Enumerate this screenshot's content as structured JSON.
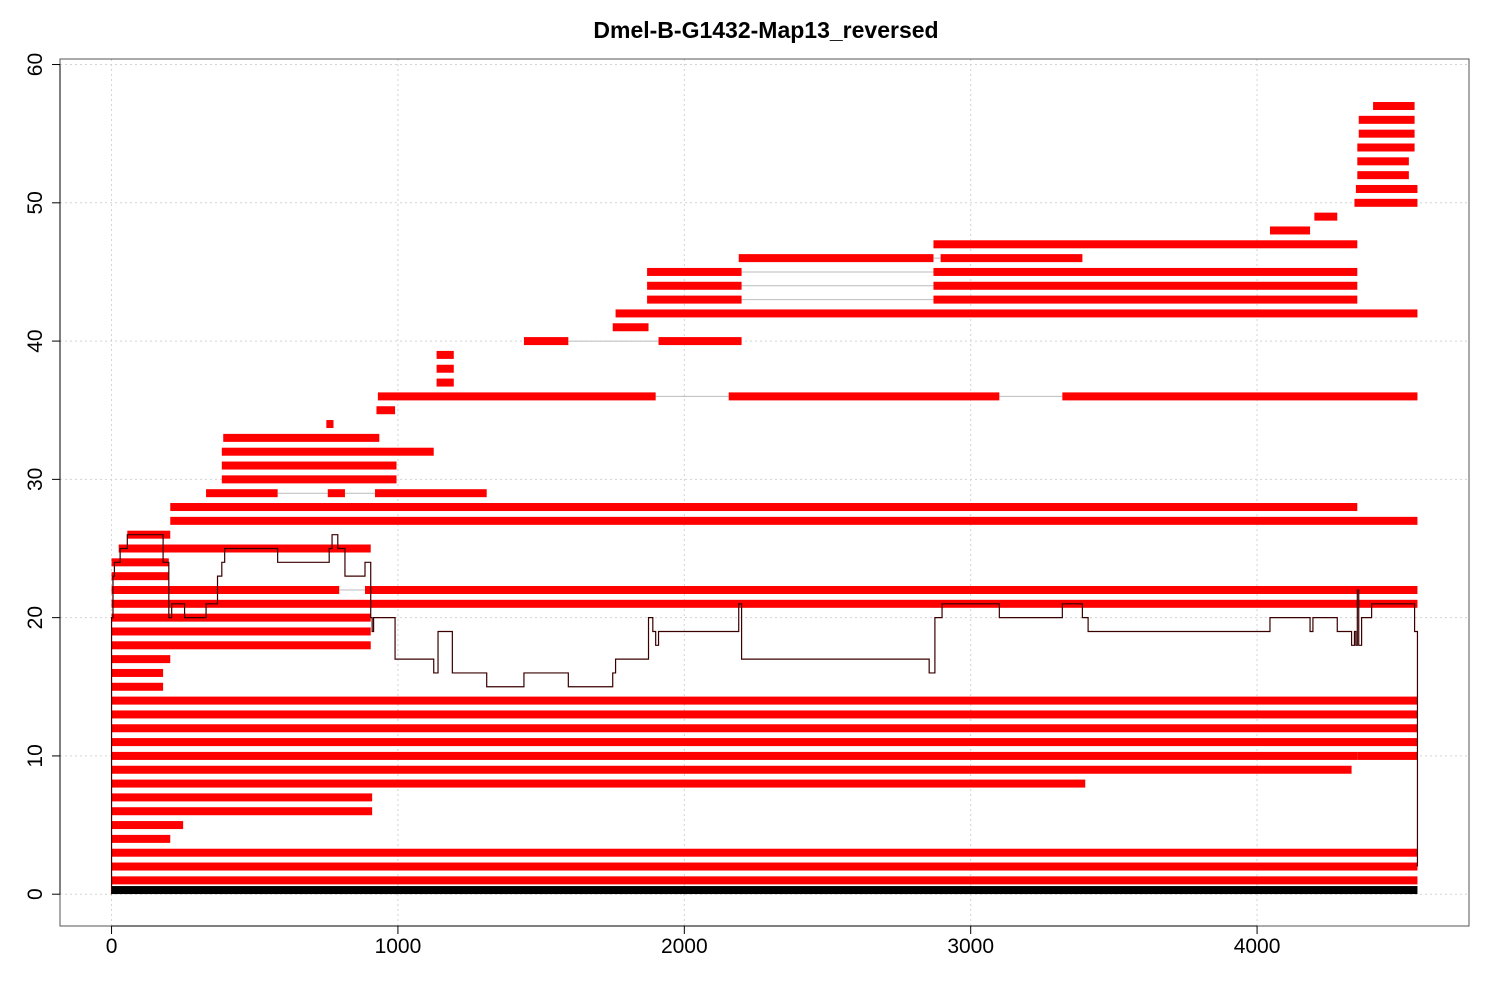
{
  "chart_data": {
    "type": "bar",
    "title": "Dmel-B-G1432-Map13_reversed",
    "xlabel": "",
    "ylabel": "",
    "xlim": [
      -180,
      4740
    ],
    "ylim": [
      -2.3,
      60.4
    ],
    "x_ticks": [
      0,
      1000,
      2000,
      3000,
      4000
    ],
    "x_tick_labels": [
      "0",
      "1000",
      "2000",
      "3000",
      "4000"
    ],
    "y_ticks": [
      0,
      10,
      20,
      30,
      40,
      50,
      60
    ],
    "y_tick_labels": [
      "0",
      "10",
      "20",
      "30",
      "40",
      "50",
      "60"
    ],
    "grid": true,
    "colors": {
      "read": "#ff0000",
      "reference": "#000000",
      "coverage": "#3a0000",
      "gap_line": "#bbbbbb",
      "grid": "#d3d3d3",
      "frame": "#555555"
    },
    "reference": {
      "x0": 0,
      "x1": 4560,
      "y": 0.3
    },
    "reads": [
      {
        "y": 1,
        "segments": [
          [
            0,
            4560
          ]
        ]
      },
      {
        "y": 2,
        "segments": [
          [
            0,
            4560
          ]
        ]
      },
      {
        "y": 3,
        "segments": [
          [
            0,
            4560
          ]
        ]
      },
      {
        "y": 4,
        "segments": [
          [
            0,
            205
          ]
        ]
      },
      {
        "y": 5,
        "segments": [
          [
            0,
            250
          ]
        ]
      },
      {
        "y": 6,
        "segments": [
          [
            0,
            910
          ]
        ]
      },
      {
        "y": 7,
        "segments": [
          [
            0,
            910
          ]
        ]
      },
      {
        "y": 8,
        "segments": [
          [
            0,
            3400
          ]
        ]
      },
      {
        "y": 9,
        "segments": [
          [
            0,
            4330
          ]
        ]
      },
      {
        "y": 10,
        "segments": [
          [
            0,
            4350
          ],
          [
            4350,
            4560
          ]
        ]
      },
      {
        "y": 11,
        "segments": [
          [
            0,
            4560
          ]
        ]
      },
      {
        "y": 12,
        "segments": [
          [
            0,
            4560
          ]
        ]
      },
      {
        "y": 13,
        "segments": [
          [
            0,
            4560
          ]
        ]
      },
      {
        "y": 14,
        "segments": [
          [
            0,
            4560
          ]
        ]
      },
      {
        "y": 15,
        "segments": [
          [
            0,
            180
          ]
        ]
      },
      {
        "y": 16,
        "segments": [
          [
            0,
            180
          ]
        ]
      },
      {
        "y": 17,
        "segments": [
          [
            0,
            205
          ]
        ]
      },
      {
        "y": 18,
        "segments": [
          [
            0,
            905
          ]
        ]
      },
      {
        "y": 19,
        "segments": [
          [
            0,
            905
          ]
        ]
      },
      {
        "y": 20,
        "segments": [
          [
            0,
            905
          ]
        ]
      },
      {
        "y": 21,
        "segments": [
          [
            0,
            4560
          ]
        ]
      },
      {
        "y": 22,
        "segments": [
          [
            0,
            795
          ],
          [
            885,
            4560
          ]
        ]
      },
      {
        "y": 23,
        "segments": [
          [
            0,
            200
          ]
        ]
      },
      {
        "y": 24,
        "segments": [
          [
            0,
            200
          ]
        ]
      },
      {
        "y": 25,
        "segments": [
          [
            25,
            905
          ]
        ]
      },
      {
        "y": 26,
        "segments": [
          [
            55,
            205
          ]
        ]
      },
      {
        "y": 27,
        "segments": [
          [
            205,
            4560
          ]
        ]
      },
      {
        "y": 28,
        "segments": [
          [
            205,
            4350
          ]
        ]
      },
      {
        "y": 29,
        "segments": [
          [
            330,
            580
          ],
          [
            755,
            815
          ],
          [
            920,
            1310
          ]
        ]
      },
      {
        "y": 30,
        "segments": [
          [
            385,
            995
          ]
        ]
      },
      {
        "y": 31,
        "segments": [
          [
            385,
            995
          ]
        ]
      },
      {
        "y": 32,
        "segments": [
          [
            385,
            1125
          ]
        ]
      },
      {
        "y": 33,
        "segments": [
          [
            390,
            935
          ]
        ]
      },
      {
        "y": 34,
        "segments": [
          [
            750,
            775
          ]
        ]
      },
      {
        "y": 35,
        "segments": [
          [
            925,
            990
          ]
        ]
      },
      {
        "y": 36,
        "segments": [
          [
            930,
            1900
          ],
          [
            2155,
            3100
          ],
          [
            3320,
            4560
          ]
        ]
      },
      {
        "y": 37,
        "segments": [
          [
            1135,
            1195
          ]
        ]
      },
      {
        "y": 38,
        "segments": [
          [
            1135,
            1195
          ]
        ]
      },
      {
        "y": 39,
        "segments": [
          [
            1135,
            1195
          ]
        ]
      },
      {
        "y": 40,
        "segments": [
          [
            1440,
            1595
          ],
          [
            1910,
            2200
          ]
        ]
      },
      {
        "y": 41,
        "segments": [
          [
            1750,
            1875
          ]
        ]
      },
      {
        "y": 42,
        "segments": [
          [
            1760,
            4560
          ]
        ]
      },
      {
        "y": 43,
        "segments": [
          [
            1870,
            2200
          ],
          [
            2870,
            4350
          ]
        ]
      },
      {
        "y": 44,
        "segments": [
          [
            1870,
            2200
          ],
          [
            2870,
            4350
          ]
        ]
      },
      {
        "y": 45,
        "segments": [
          [
            1870,
            2200
          ],
          [
            2870,
            4350
          ]
        ]
      },
      {
        "y": 46,
        "segments": [
          [
            2190,
            2870
          ],
          [
            2895,
            3390
          ]
        ]
      },
      {
        "y": 47,
        "segments": [
          [
            2870,
            4350
          ]
        ]
      },
      {
        "y": 48,
        "segments": [
          [
            4045,
            4185
          ]
        ]
      },
      {
        "y": 49,
        "segments": [
          [
            4200,
            4280
          ]
        ]
      },
      {
        "y": 50,
        "segments": [
          [
            4340,
            4560
          ]
        ]
      },
      {
        "y": 51,
        "segments": [
          [
            4345,
            4560
          ]
        ]
      },
      {
        "y": 52,
        "segments": [
          [
            4350,
            4530
          ]
        ]
      },
      {
        "y": 53,
        "segments": [
          [
            4350,
            4530
          ]
        ]
      },
      {
        "y": 54,
        "segments": [
          [
            4350,
            4550
          ]
        ]
      },
      {
        "y": 55,
        "segments": [
          [
            4355,
            4550
          ]
        ]
      },
      {
        "y": 56,
        "segments": [
          [
            4355,
            4550
          ]
        ]
      },
      {
        "y": 57,
        "segments": [
          [
            4405,
            4550
          ]
        ]
      }
    ],
    "coverage": {
      "x": [
        0,
        5,
        10,
        30,
        55,
        180,
        200,
        210,
        255,
        330,
        370,
        385,
        395,
        580,
        760,
        770,
        790,
        815,
        885,
        905,
        910,
        915,
        930,
        945,
        990,
        1000,
        1125,
        1140,
        1190,
        1210,
        1310,
        1440,
        1595,
        1750,
        1760,
        1875,
        1890,
        1900,
        1910,
        2190,
        2200,
        2210,
        2855,
        2875,
        2900,
        3100,
        3320,
        3390,
        3410,
        4045,
        4185,
        4195,
        4280,
        4330,
        4340,
        4345,
        4350,
        4355,
        4365,
        4380,
        4400,
        4405,
        4530,
        4550,
        4560
      ],
      "y": [
        20,
        23,
        24,
        25,
        26,
        24,
        20,
        21,
        20,
        21,
        23,
        24,
        25,
        24,
        25,
        26,
        25,
        23,
        24,
        20,
        19,
        20,
        20,
        20,
        17,
        17,
        16,
        19,
        16,
        16,
        15,
        16,
        15,
        16,
        17,
        20,
        19,
        18,
        19,
        21,
        17,
        17,
        16,
        20,
        21,
        20,
        21,
        20,
        19,
        20,
        19,
        20,
        19,
        18,
        19,
        18,
        22,
        18,
        20,
        20,
        21,
        21,
        21,
        19,
        2
      ]
    }
  }
}
